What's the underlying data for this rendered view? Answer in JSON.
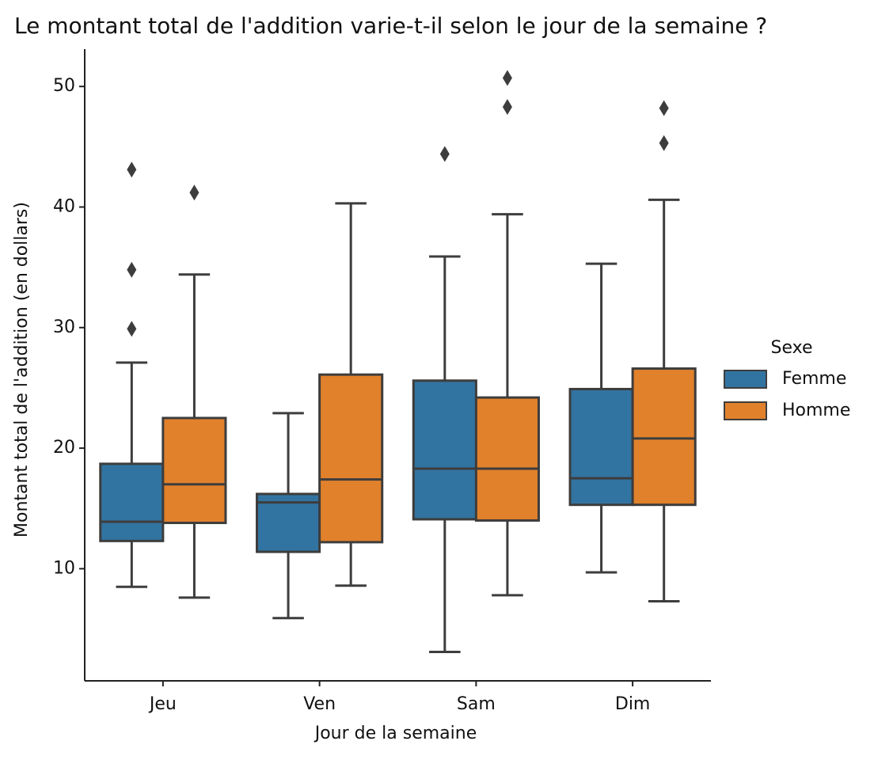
{
  "chart_data": {
    "type": "box",
    "title": "Le montant total de l'addition varie-t-il selon le jour de la semaine ?",
    "xlabel": "Jour de la semaine",
    "ylabel": "Montant total de l'addition (en dollars)",
    "categories": [
      "Jeu",
      "Ven",
      "Sam",
      "Dim"
    ],
    "legend_title": "Sexe",
    "legend_position": "right",
    "series": [
      {
        "name": "Femme",
        "color": "#3274a1",
        "boxes": [
          {
            "whislo": 8.5,
            "q1": 12.3,
            "med": 13.9,
            "q3": 18.7,
            "whishi": 27.1,
            "fliers": [
              43.1,
              34.8,
              29.9
            ]
          },
          {
            "whislo": 5.9,
            "q1": 11.4,
            "med": 15.5,
            "q3": 16.2,
            "whishi": 22.9,
            "fliers": []
          },
          {
            "whislo": 3.1,
            "q1": 14.1,
            "med": 18.3,
            "q3": 25.6,
            "whishi": 35.9,
            "fliers": [
              44.4
            ]
          },
          {
            "whislo": 9.7,
            "q1": 15.3,
            "med": 17.5,
            "q3": 24.9,
            "whishi": 35.3,
            "fliers": []
          }
        ]
      },
      {
        "name": "Homme",
        "color": "#e1812c",
        "boxes": [
          {
            "whislo": 7.6,
            "q1": 13.8,
            "med": 17.0,
            "q3": 22.5,
            "whishi": 34.4,
            "fliers": [
              41.2
            ]
          },
          {
            "whislo": 8.6,
            "q1": 12.2,
            "med": 17.4,
            "q3": 26.1,
            "whishi": 40.3,
            "fliers": []
          },
          {
            "whislo": 7.8,
            "q1": 14.0,
            "med": 18.3,
            "q3": 24.2,
            "whishi": 39.4,
            "fliers": [
              50.7,
              48.3
            ]
          },
          {
            "whislo": 7.3,
            "q1": 15.3,
            "med": 20.8,
            "q3": 26.6,
            "whishi": 40.6,
            "fliers": [
              48.2,
              45.3
            ]
          }
        ]
      }
    ],
    "ylim": [
      0.7,
      53.1
    ],
    "yticks": [
      10,
      20,
      30,
      40,
      50
    ]
  }
}
